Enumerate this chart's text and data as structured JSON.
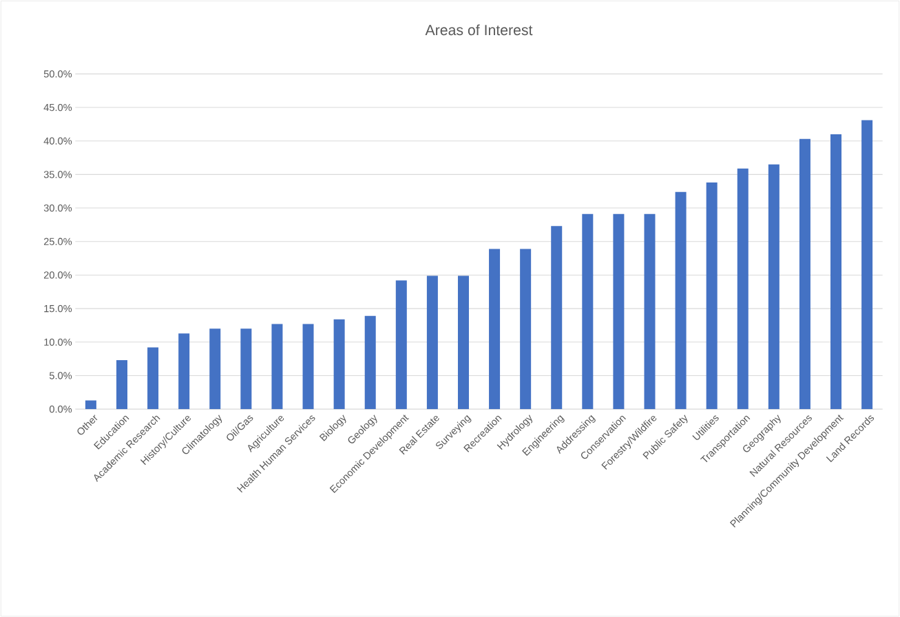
{
  "chart_data": {
    "type": "bar",
    "title": "Areas of Interest",
    "categories": [
      "Other",
      "Education",
      "Academic Research",
      "History/Culture",
      "Climatology",
      "Oil/Gas",
      "Agriculture",
      "Health Human Services",
      "Biology",
      "Geology",
      "Economic Development",
      "Real Estate",
      "Surveying",
      "Recreation",
      "Hydrology",
      "Engineering",
      "Addressing",
      "Conservation",
      "Forestry/Wildfire",
      "Public Safety",
      "Utilities",
      "Transportation",
      "Geography",
      "Natural Resources",
      "Planning/Community Development",
      "Land Records"
    ],
    "values": [
      1.3,
      7.3,
      9.2,
      11.3,
      12.0,
      12.0,
      12.7,
      12.7,
      13.4,
      13.9,
      19.2,
      19.9,
      19.9,
      23.9,
      23.9,
      27.3,
      29.1,
      29.1,
      29.1,
      32.4,
      33.8,
      35.9,
      36.5,
      40.3,
      41.0,
      43.1
    ],
    "color": "#4472c4",
    "ylim": [
      0,
      50
    ],
    "yticks": [
      {
        "value": 0,
        "label": "0.0%"
      },
      {
        "value": 5,
        "label": "5.0%"
      },
      {
        "value": 10,
        "label": "10.0%"
      },
      {
        "value": 15,
        "label": "15.0%"
      },
      {
        "value": 20,
        "label": "20.0%"
      },
      {
        "value": 25,
        "label": "25.0%"
      },
      {
        "value": 30,
        "label": "30.0%"
      },
      {
        "value": 35,
        "label": "35.0%"
      },
      {
        "value": 40,
        "label": "40.0%"
      },
      {
        "value": 45,
        "label": "45.0%"
      },
      {
        "value": 50,
        "label": "50.0%"
      }
    ],
    "grid": "y"
  }
}
